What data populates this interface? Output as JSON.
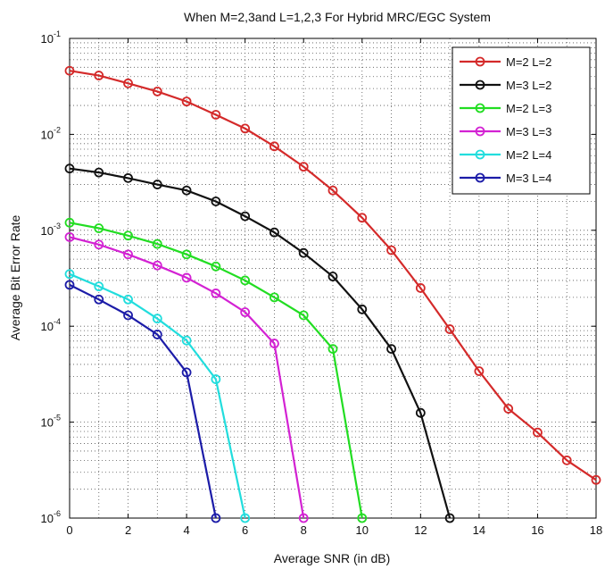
{
  "chart_data": {
    "type": "line",
    "title": "When M=2,3and L=1,2,3 For Hybrid MRC/EGC System",
    "xlabel": "Average SNR (in dB)",
    "ylabel": "Average Bit Error Rate",
    "xlim": [
      0,
      18
    ],
    "ylim": [
      1e-06,
      0.1
    ],
    "yscale": "log",
    "grid": true,
    "legend_position": "top-right",
    "xticks": [
      0,
      2,
      4,
      6,
      8,
      10,
      12,
      14,
      16,
      18
    ],
    "xtick_labels": [
      "0",
      "2",
      "4",
      "6",
      "8",
      "10",
      "12",
      "14",
      "16",
      "18"
    ],
    "yticks": [
      {
        "value": 0.1,
        "base": "10",
        "exp": "-1"
      },
      {
        "value": 0.01,
        "base": "10",
        "exp": "-2"
      },
      {
        "value": 0.001,
        "base": "10",
        "exp": "-3"
      },
      {
        "value": 0.0001,
        "base": "10",
        "exp": "-4"
      },
      {
        "value": 1e-05,
        "base": "10",
        "exp": "-5"
      },
      {
        "value": 1e-06,
        "base": "10",
        "exp": "-6"
      }
    ],
    "series": [
      {
        "name": "M=2 L=2",
        "color": "#d42a2a",
        "x": [
          0,
          1,
          2,
          3,
          4,
          5,
          6,
          7,
          8,
          9,
          10,
          11,
          12,
          13,
          14,
          15,
          16,
          17,
          18
        ],
        "y": [
          0.046,
          0.041,
          0.034,
          0.028,
          0.022,
          0.016,
          0.0115,
          0.0075,
          0.0046,
          0.0026,
          0.00135,
          0.00062,
          0.00025,
          9.3e-05,
          3.4e-05,
          1.38e-05,
          7.8e-06,
          4e-06,
          2.5e-06
        ]
      },
      {
        "name": "M=3 L=2",
        "color": "#111111",
        "x": [
          0,
          1,
          2,
          3,
          4,
          5,
          6,
          7,
          8,
          9,
          10,
          11,
          12,
          13
        ],
        "y": [
          0.0044,
          0.004,
          0.0035,
          0.003,
          0.0026,
          0.002,
          0.0014,
          0.00095,
          0.00058,
          0.00033,
          0.00015,
          5.8e-05,
          1.25e-05,
          1e-06
        ]
      },
      {
        "name": "M=2 L=3",
        "color": "#22dd22",
        "x": [
          0,
          1,
          2,
          3,
          4,
          5,
          6,
          7,
          8,
          9,
          10
        ],
        "y": [
          0.0012,
          0.00105,
          0.00088,
          0.00072,
          0.00056,
          0.00042,
          0.0003,
          0.0002,
          0.00013,
          5.8e-05,
          1e-06
        ]
      },
      {
        "name": "M=3 L=3",
        "color": "#d322d3",
        "x": [
          0,
          1,
          2,
          3,
          4,
          5,
          6,
          7,
          8
        ],
        "y": [
          0.00085,
          0.00071,
          0.00056,
          0.00043,
          0.00032,
          0.00022,
          0.00014,
          6.6e-05,
          1e-06
        ]
      },
      {
        "name": "M=2 L=4",
        "color": "#22dddd",
        "x": [
          0,
          1,
          2,
          3,
          4,
          5,
          6
        ],
        "y": [
          0.00035,
          0.00026,
          0.00019,
          0.00012,
          7.1e-05,
          2.8e-05,
          1e-06
        ]
      },
      {
        "name": "M=3 L=4",
        "color": "#1c1ca8",
        "x": [
          0,
          1,
          2,
          3,
          4,
          5
        ],
        "y": [
          0.00027,
          0.00019,
          0.00013,
          8.2e-05,
          3.3e-05,
          1e-06
        ]
      }
    ]
  }
}
